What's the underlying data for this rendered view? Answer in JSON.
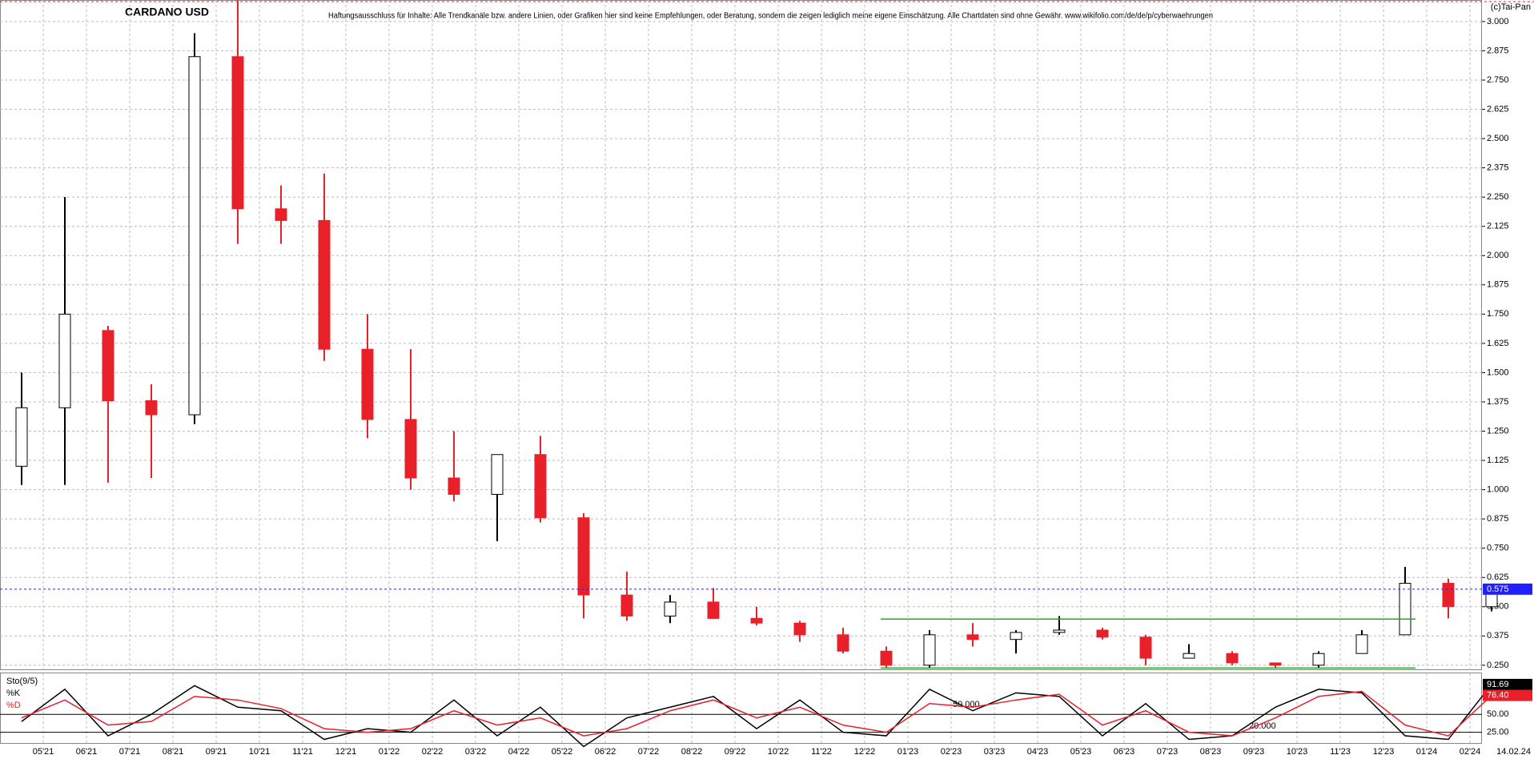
{
  "chart_data": [
    {
      "type": "candlestick",
      "title": "CARDANO USD",
      "subtitle": "Haftungsausschluss für Inhalte: Alle Trendkanäle bzw. andere Linien, oder Grafiken hier sind keine Empfehlungen, oder Beratung, sondern die zeigen lediglich meine eigene Einschätzung. Alle Chartdaten sind ohne Gewähr.  www.wikifolio.com/de/de/p/cyberwaehrungen",
      "source": "(c)Tai-Pan",
      "date_label": "14.02.24",
      "categories": [
        null,
        "05'21",
        "06'21",
        "07'21",
        "08'21",
        "09'21",
        "10'21",
        "11'21",
        "12'21",
        "01'22",
        "02'22",
        "03'22",
        "04'22",
        "05'22",
        "06'22",
        "07'22",
        "08'22",
        "09'22",
        "10'22",
        "11'22",
        "12'22",
        "01'23",
        "02'23",
        "03'23",
        "04'23",
        "05'23",
        "06'23",
        "07'23",
        "08'23",
        "09'23",
        "10'23",
        "11'23",
        "12'23",
        "01'24",
        "02'24"
      ],
      "open": [
        1.1,
        1.35,
        1.68,
        1.38,
        1.32,
        2.85,
        2.2,
        2.15,
        1.6,
        1.3,
        1.05,
        0.98,
        1.15,
        0.88,
        0.55,
        0.46,
        0.52,
        0.45,
        0.43,
        0.38,
        0.31,
        0.25,
        0.38,
        0.36,
        0.39,
        0.4,
        0.37,
        0.28,
        0.3,
        0.26,
        0.25,
        0.3,
        0.38,
        0.6,
        0.5
      ],
      "high": [
        1.5,
        2.25,
        1.7,
        1.45,
        2.95,
        3.09,
        2.3,
        2.35,
        1.75,
        1.6,
        1.25,
        1.15,
        1.23,
        0.9,
        0.65,
        0.55,
        0.58,
        0.5,
        0.44,
        0.41,
        0.33,
        0.4,
        0.43,
        0.4,
        0.46,
        0.41,
        0.38,
        0.34,
        0.31,
        0.26,
        0.31,
        0.4,
        0.67,
        0.62,
        0.59
      ],
      "low": [
        1.02,
        1.02,
        1.03,
        1.05,
        1.28,
        2.05,
        2.05,
        1.55,
        1.22,
        1.0,
        0.95,
        0.78,
        0.86,
        0.45,
        0.44,
        0.43,
        0.45,
        0.42,
        0.35,
        0.3,
        0.24,
        0.24,
        0.33,
        0.3,
        0.38,
        0.36,
        0.25,
        0.28,
        0.25,
        0.24,
        0.24,
        0.3,
        0.38,
        0.45,
        0.48
      ],
      "close": [
        1.35,
        1.75,
        1.38,
        1.32,
        2.85,
        2.2,
        2.15,
        1.6,
        1.3,
        1.05,
        0.98,
        1.15,
        0.88,
        0.55,
        0.46,
        0.52,
        0.45,
        0.43,
        0.38,
        0.31,
        0.25,
        0.38,
        0.36,
        0.39,
        0.4,
        0.37,
        0.28,
        0.3,
        0.26,
        0.25,
        0.3,
        0.38,
        0.6,
        0.5,
        0.58
      ],
      "up_color": "#ffffff",
      "down_color": "#e8202a",
      "edge_color": "#000000",
      "ylim": [
        0.229,
        3.092
      ],
      "yticks": [
        {
          "value": 0.25,
          "label": "0.250"
        },
        {
          "value": 0.375,
          "label": "0.375"
        },
        {
          "value": 0.5,
          "label": "0.500"
        },
        {
          "value": 0.625,
          "label": "0.625"
        },
        {
          "value": 0.75,
          "label": "0.750"
        },
        {
          "value": 0.875,
          "label": "0.875"
        },
        {
          "value": 1,
          "label": "1.000"
        },
        {
          "value": 1.125,
          "label": "1.125"
        },
        {
          "value": 1.25,
          "label": "1.250"
        },
        {
          "value": 1.375,
          "label": "1.375"
        },
        {
          "value": 1.5,
          "label": "1.500"
        },
        {
          "value": 1.625,
          "label": "1.625"
        },
        {
          "value": 1.75,
          "label": "1.750"
        },
        {
          "value": 1.875,
          "label": "1.875"
        },
        {
          "value": 2,
          "label": "2.000"
        },
        {
          "value": 2.125,
          "label": "2.125"
        },
        {
          "value": 2.25,
          "label": "2.250"
        },
        {
          "value": 2.375,
          "label": "2.375"
        },
        {
          "value": 2.5,
          "label": "2.500"
        },
        {
          "value": 2.625,
          "label": "2.625"
        },
        {
          "value": 2.75,
          "label": "2.750"
        },
        {
          "value": 2.875,
          "label": "2.875"
        },
        {
          "value": 3,
          "label": "3.000"
        }
      ],
      "grid": true,
      "hlines": [
        {
          "value": 0.575,
          "label": "0.575",
          "color": "#2020ff"
        }
      ],
      "trend_lines": [
        {
          "value": 0.447,
          "start": "12'22",
          "end": "12'23",
          "color": "#22aa22"
        },
        {
          "value": 0.238,
          "start": "12'22",
          "end": "12'23",
          "color": "#22aa22"
        }
      ]
    },
    {
      "type": "line",
      "title": "Sto(9/5)",
      "series": [
        {
          "name": "%K",
          "color": "#000000",
          "values": [
            40,
            85,
            20,
            50,
            90,
            60,
            55,
            15,
            30,
            25,
            70,
            20,
            60,
            5,
            45,
            60,
            75,
            30,
            70,
            25,
            20,
            85,
            55,
            80,
            75,
            20,
            65,
            15,
            20,
            60,
            85,
            80,
            20,
            15,
            91.69
          ]
        },
        {
          "name": "%D",
          "color": "#e8202a",
          "values": [
            45,
            70,
            35,
            40,
            75,
            70,
            58,
            30,
            25,
            30,
            55,
            35,
            45,
            20,
            30,
            55,
            70,
            45,
            60,
            35,
            25,
            65,
            60,
            70,
            78,
            35,
            55,
            25,
            20,
            45,
            75,
            82,
            35,
            20,
            76.4
          ],
          "value_labels": [
            null,
            null,
            null,
            null,
            null,
            null,
            null,
            null,
            null,
            null,
            null,
            null,
            null,
            null,
            null,
            null,
            null,
            null,
            null,
            null,
            null,
            null,
            null,
            null,
            null,
            null,
            null,
            null,
            null,
            null,
            null,
            null,
            null,
            null,
            "76.40"
          ]
        }
      ],
      "ylim": [
        10,
        105
      ],
      "yticks": [
        {
          "value": 25,
          "label": "25.00"
        },
        {
          "value": 50,
          "label": "50.00"
        }
      ],
      "annotations": [
        "50.000",
        "20.000"
      ]
    }
  ]
}
